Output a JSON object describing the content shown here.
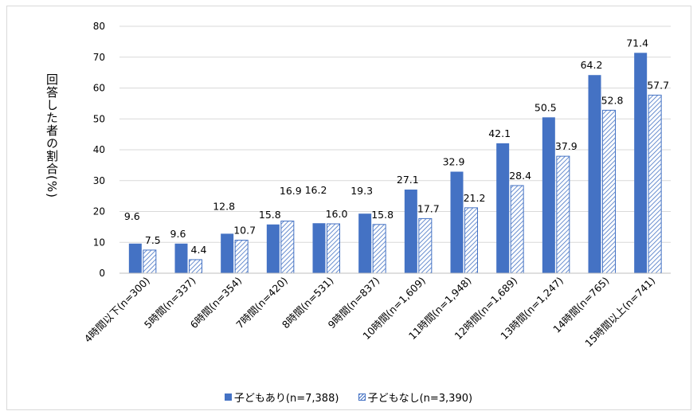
{
  "chart_data": {
    "type": "bar",
    "ylabel": "回答した者の割合(%)",
    "ylim": [
      0,
      80
    ],
    "yticks": [
      0,
      10,
      20,
      30,
      40,
      50,
      60,
      70,
      80
    ],
    "grid": true,
    "legend_position": "bottom",
    "categories": [
      "4時間以下(n=300)",
      "5時間(n=337)",
      "6時間(n=354)",
      "7時間(n=420)",
      "8時間(n=531)",
      "9時間(n=837)",
      "10時間(n=1,609)",
      "11時間(n=1,948)",
      "12時間(n=1,689)",
      "13時間(n=1,247)",
      "14時間(n=765)",
      "15時間以上(n=741)"
    ],
    "series": [
      {
        "name": "子どもあり(n=7,388)",
        "values": [
          9.6,
          9.6,
          12.8,
          15.8,
          16.2,
          19.3,
          27.1,
          32.9,
          42.1,
          50.5,
          64.2,
          71.4
        ],
        "color": "#4472c4",
        "style": "solid"
      },
      {
        "name": "子どもなし(n=3,390)",
        "values": [
          7.5,
          4.4,
          10.7,
          16.9,
          16.0,
          15.8,
          17.7,
          21.2,
          28.4,
          37.9,
          52.8,
          57.7
        ],
        "color": "#4472c4",
        "style": "hatched"
      }
    ]
  }
}
